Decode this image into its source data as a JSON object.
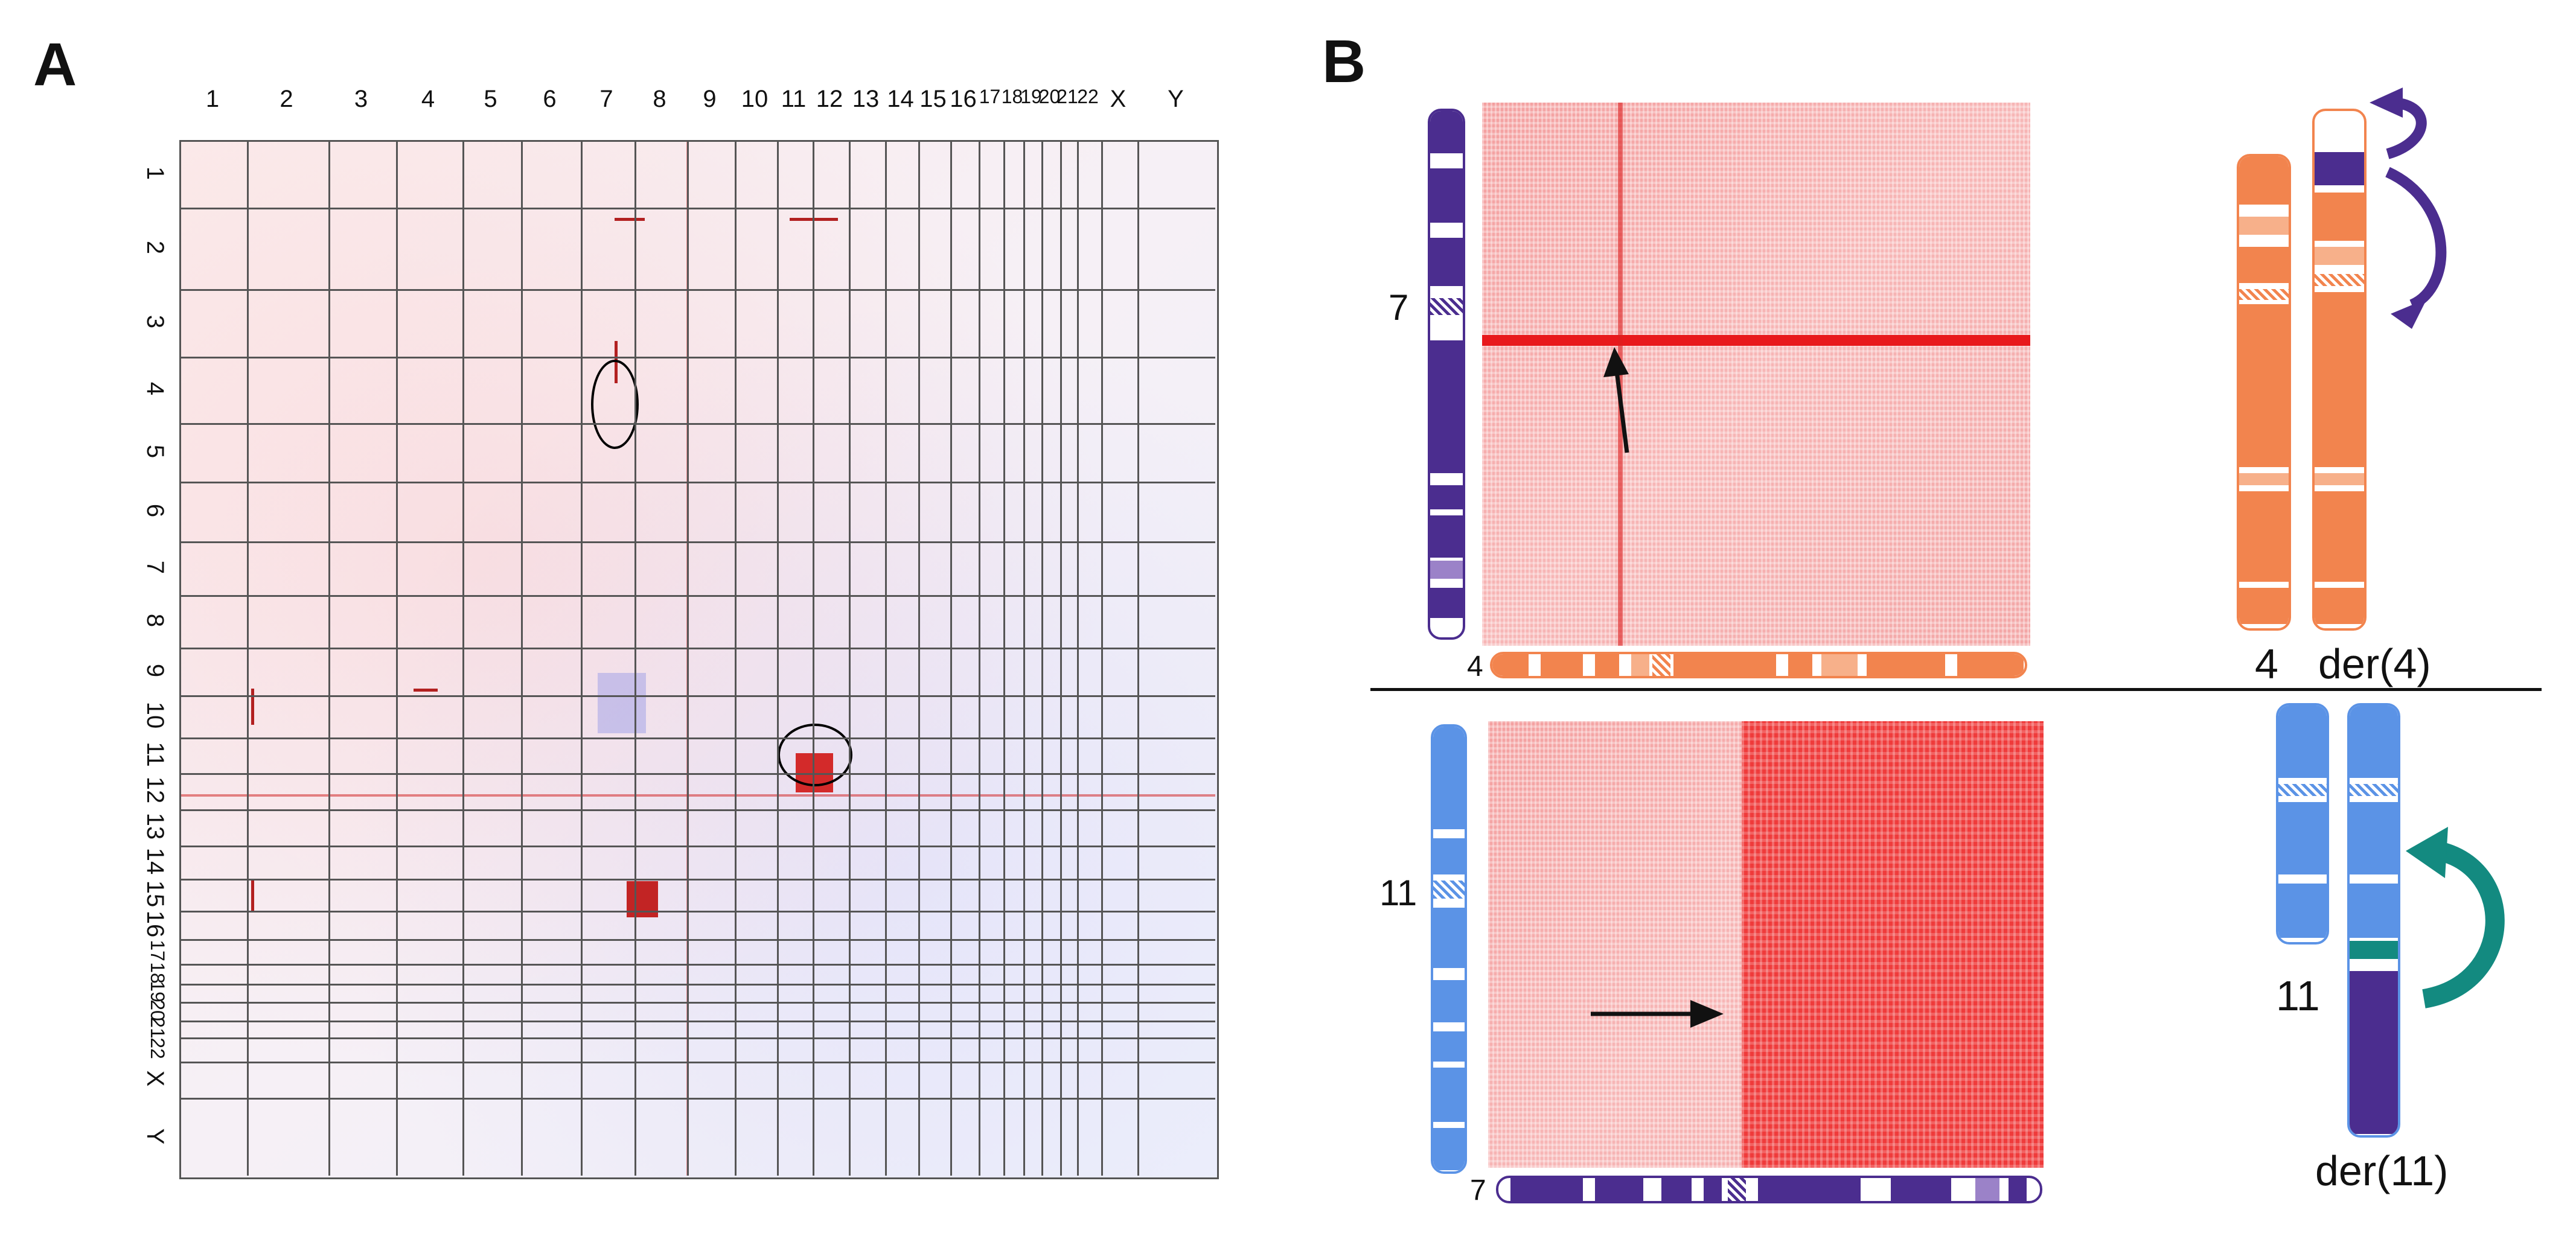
{
  "panel_a": {
    "letter": "A",
    "column_labels": [
      "1",
      "2",
      "3",
      "4",
      "5",
      "6",
      "7",
      "8",
      "9",
      "10",
      "11",
      "12",
      "13",
      "14",
      "15",
      "16",
      "17",
      "18",
      "19",
      "20",
      "21",
      "22",
      "X",
      "Y"
    ],
    "row_labels": [
      "1",
      "2",
      "3",
      "4",
      "5",
      "6",
      "7",
      "8",
      "9",
      "10",
      "11",
      "12",
      "13",
      "14",
      "15",
      "16",
      "17",
      "18",
      "19",
      "20",
      "21",
      "22",
      "X",
      "Y"
    ]
  },
  "panel_b": {
    "letter": "B",
    "top": {
      "y_chrom_label": "7",
      "x_chrom_label": "4",
      "ideogram_normal_label": "4",
      "ideogram_derivative_label": "der(4)",
      "colors": {
        "chrom7": "#4b2d8f",
        "chrom4": "#f2844e"
      }
    },
    "bottom": {
      "y_chrom_label": "11",
      "x_chrom_label": "7",
      "ideogram_normal_label": "11",
      "ideogram_derivative_label": "der(11)",
      "colors": {
        "chrom11": "#5b93e6",
        "chrom7": "#4b2d8f",
        "arrow": "#138a80"
      }
    }
  },
  "colors": {
    "signal_red": "#e8191c",
    "grid": "#555555",
    "divider": "#111111"
  }
}
